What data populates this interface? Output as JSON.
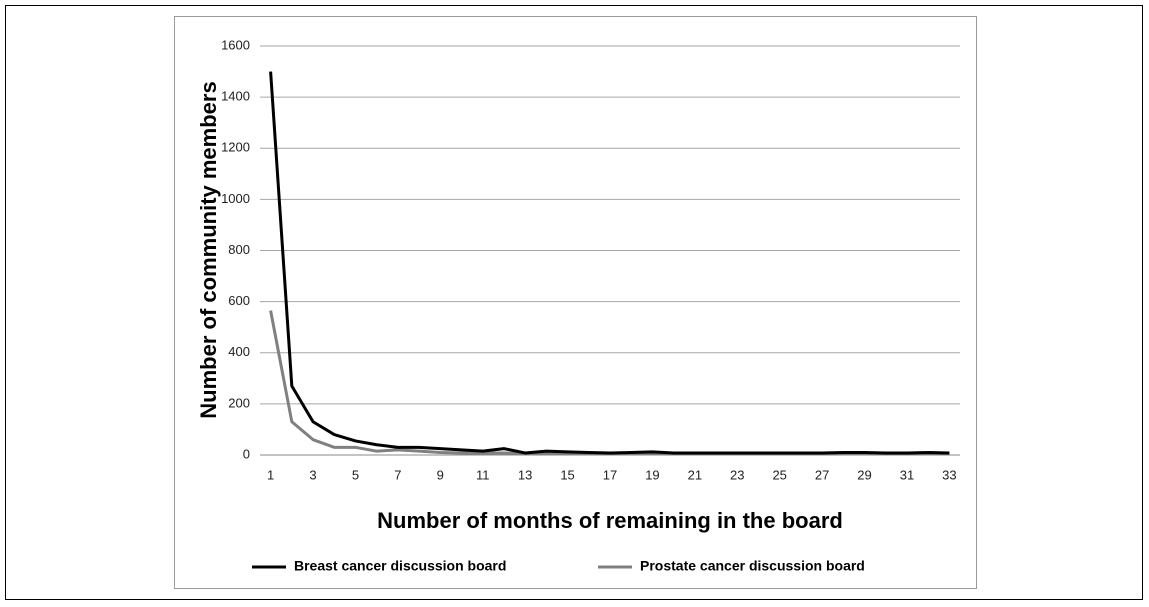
{
  "chart_data": {
    "type": "line",
    "x_label": "Number of months of remaining in the board",
    "y_label": "Number of community members",
    "categories": [
      "1",
      null,
      "3",
      null,
      "5",
      null,
      "7",
      null,
      "9",
      null,
      "11",
      null,
      "13",
      null,
      "15",
      null,
      "17",
      null,
      "19",
      null,
      "21",
      null,
      "23",
      null,
      "25",
      null,
      "27",
      null,
      "29",
      null,
      "31",
      null,
      "33"
    ],
    "series": [
      {
        "name": "Breast cancer discussion board",
        "color": "#000000",
        "values": [
          1500,
          270,
          130,
          80,
          55,
          40,
          30,
          30,
          25,
          20,
          15,
          25,
          8,
          15,
          12,
          10,
          8,
          10,
          12,
          8,
          8,
          8,
          8,
          8,
          8,
          8,
          8,
          10,
          10,
          8,
          8,
          10,
          8
        ]
      },
      {
        "name": "Prostate cancer discussion board",
        "color": "#808080",
        "values": [
          565,
          130,
          60,
          30,
          30,
          15,
          20,
          15,
          10,
          8,
          8,
          8,
          5,
          5,
          5,
          5,
          5,
          5,
          5,
          5,
          5,
          5,
          5,
          5,
          5,
          5,
          5,
          5,
          5,
          5,
          5,
          5,
          5
        ]
      }
    ],
    "ylim": [
      0,
      1600
    ],
    "yticks": [
      0,
      200,
      400,
      600,
      800,
      1000,
      1200,
      1400,
      1600
    ],
    "grid": true,
    "legend": "bottom"
  }
}
